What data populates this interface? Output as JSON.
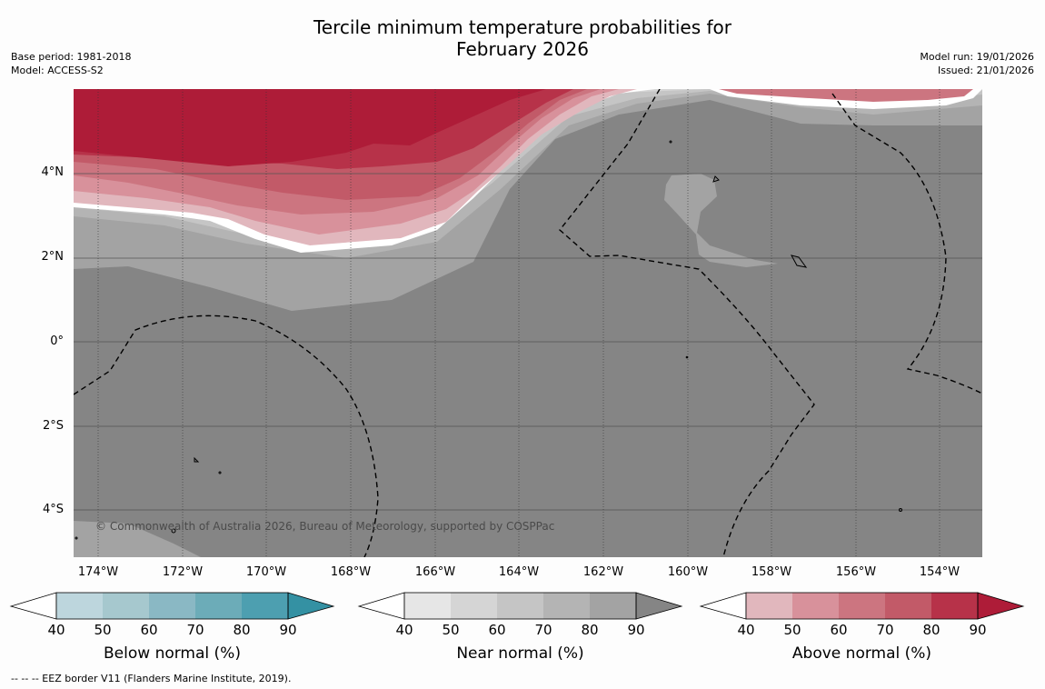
{
  "title": {
    "line1": "Tercile minimum temperature probabilities for",
    "line2": "February 2026"
  },
  "meta_left": {
    "base_period": "Base period: 1981-2018",
    "model": "Model: ACCESS-S2"
  },
  "meta_right": {
    "model_run": "Model run: 19/01/2026",
    "issued": "Issued: 21/01/2026"
  },
  "map": {
    "lat_labels": [
      "4°N",
      "2°N",
      "0°",
      "2°S",
      "4°S"
    ],
    "lon_labels": [
      "174°W",
      "172°W",
      "170°W",
      "168°W",
      "166°W",
      "164°W",
      "162°W",
      "160°W",
      "158°W",
      "156°W",
      "154°W"
    ],
    "copyright": "© Commonwealth of Australia 2026, Bureau of Meteorology, supported by COSPPac"
  },
  "colorbars": {
    "ticks": [
      "40",
      "50",
      "60",
      "70",
      "80",
      "90"
    ],
    "below": {
      "label": "Below normal (%)",
      "colors": [
        "#ffffff",
        "#bdd6dd",
        "#a6c8ce",
        "#8ab8c4",
        "#6cacb8",
        "#4d9fb0",
        "#3491a3"
      ]
    },
    "near": {
      "label": "Near normal (%)",
      "colors": [
        "#ffffff",
        "#e6e6e6",
        "#d5d5d5",
        "#c5c5c5",
        "#b4b4b4",
        "#a3a3a3",
        "#858585"
      ]
    },
    "above": {
      "label": "Above normal (%)",
      "colors": [
        "#ffffff",
        "#e1b7bd",
        "#d8919b",
        "#cc7580",
        "#c25a68",
        "#b73249",
        "#ae1c38"
      ]
    }
  },
  "footnote": "--  --  -- EEZ border V11 (Flanders Marine Institute, 2019)."
}
